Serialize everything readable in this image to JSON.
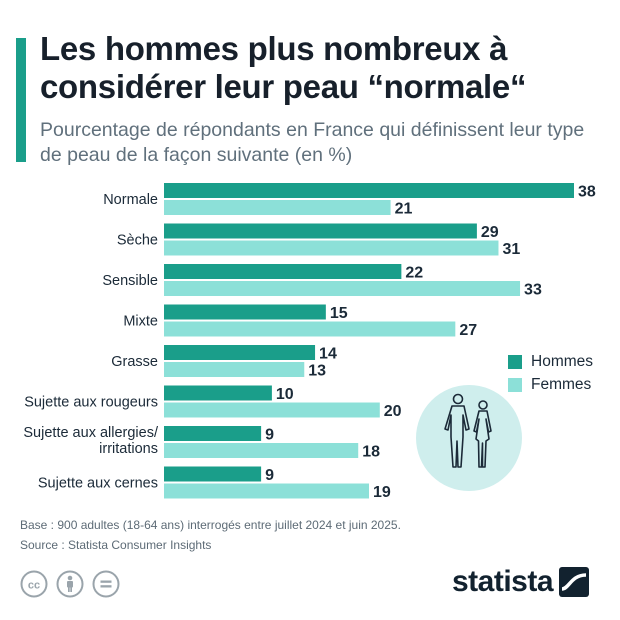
{
  "header": {
    "title": "Les hommes plus nombreux à considérer leur peau “normale“",
    "subtitle": "Pourcentage de répondants en France qui définissent leur type de peau de la façon suivante (en %)"
  },
  "chart_data": {
    "type": "bar",
    "orientation": "horizontal",
    "categories": [
      [
        "Normale"
      ],
      [
        "Sèche"
      ],
      [
        "Sensible"
      ],
      [
        "Mixte"
      ],
      [
        "Grasse"
      ],
      [
        "Sujette aux rougeurs"
      ],
      [
        "Sujette aux allergies/",
        "irritations"
      ],
      [
        "Sujette aux cernes"
      ]
    ],
    "series": [
      {
        "name": "Hommes",
        "color": "#1a9e8a",
        "values": [
          38,
          29,
          22,
          15,
          14,
          10,
          9,
          9
        ]
      },
      {
        "name": "Femmes",
        "color": "#8ce0d8",
        "values": [
          21,
          31,
          33,
          27,
          13,
          20,
          18,
          19
        ]
      }
    ],
    "xlim": [
      0,
      38
    ],
    "grid": false,
    "legend_position": "right"
  },
  "legend": {
    "items": [
      {
        "label": "Hommes",
        "color": "#1a9e8a"
      },
      {
        "label": "Femmes",
        "color": "#8ce0d8"
      }
    ]
  },
  "footer": {
    "base": "Base : 900 adultes (18-64 ans) interrogés entre juillet 2024 et juin 2025.",
    "source": "Source : Statista Consumer Insights",
    "brand": "statista"
  },
  "icons": {
    "figure": "man-woman-silhouette-icon",
    "licenses": [
      "creative-commons-icon",
      "attribution-person-icon",
      "no-derivatives-icon"
    ],
    "brand_mark": "statista-logo-icon"
  },
  "colors": {
    "accent": "#1a9e8a",
    "hommes": "#1a9e8a",
    "femmes": "#8ce0d8",
    "figure_bg": "#cfeeed"
  }
}
